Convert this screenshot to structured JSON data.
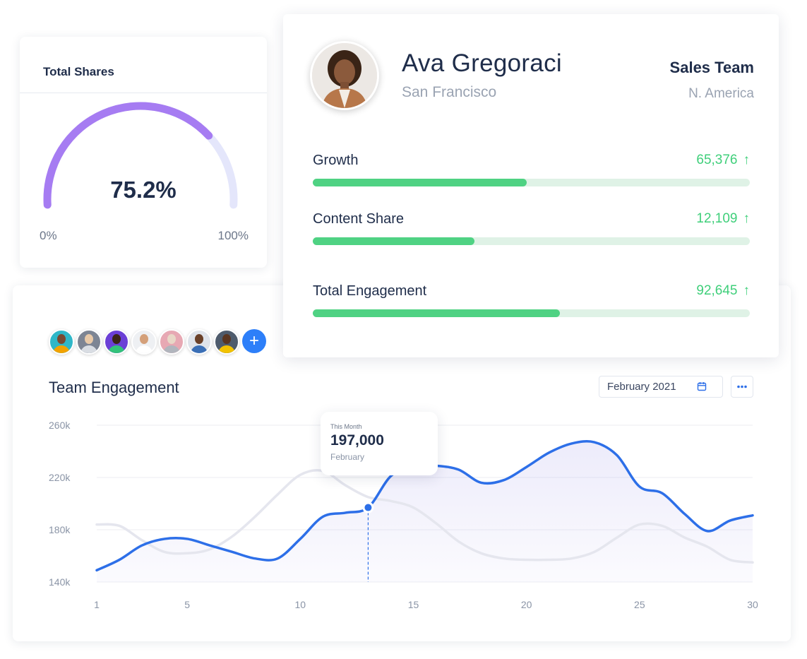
{
  "shares": {
    "title": "Total Shares",
    "percent": 75.2,
    "value_label": "75.2%",
    "min_label": "0%",
    "max_label": "100%"
  },
  "profile": {
    "name": "Ava Gregoraci",
    "city": "San Francisco",
    "team": "Sales Team",
    "region": "N. America",
    "metrics": [
      {
        "label": "Growth",
        "value": "65,376",
        "fill": 0.49
      },
      {
        "label": "Content Share",
        "value": "12,109",
        "fill": 0.37
      },
      {
        "label": "Total Engagement",
        "value": "92,645",
        "fill": 0.565
      }
    ]
  },
  "engagement": {
    "title": "Team Engagement",
    "date_label": "February  2021",
    "tooltip": {
      "caption": "This Month",
      "value": "197,000",
      "month": "February"
    }
  },
  "colors": {
    "accent_blue": "#2d6fe8",
    "secondary_line": "#e5e6ee",
    "gauge_purple": "#a67cf2",
    "gauge_track": "#e4e6fb",
    "metric_green": "#4fd283",
    "add_button": "#2d7ff9"
  },
  "chart_data": {
    "type": "line",
    "x": [
      1,
      2,
      3,
      4,
      5,
      6,
      7,
      8,
      9,
      10,
      11,
      12,
      13,
      14,
      15,
      16,
      17,
      18,
      19,
      20,
      21,
      22,
      23,
      24,
      25,
      26,
      27,
      28,
      29,
      30
    ],
    "x_ticks": [
      1,
      5,
      10,
      15,
      20,
      25,
      30
    ],
    "y_ticks": [
      "140k",
      "180k",
      "220k",
      "260k"
    ],
    "ylim": [
      140000,
      260000
    ],
    "grid": true,
    "highlight": {
      "x": 13,
      "y": 197000
    },
    "series": [
      {
        "values": [
          149000,
          157000,
          168000,
          173000,
          173000,
          168000,
          163000,
          158000,
          158000,
          173000,
          190000,
          193000,
          197000,
          221000,
          229000,
          229000,
          226000,
          216000,
          218000,
          228000,
          239000,
          246000,
          247000,
          237000,
          213000,
          208000,
          192000,
          179000,
          187000,
          191000
        ]
      },
      {
        "values": [
          184000,
          183000,
          172000,
          163000,
          162000,
          165000,
          175000,
          190000,
          207000,
          222000,
          225000,
          214000,
          205000,
          202000,
          197000,
          185000,
          171000,
          162000,
          158000,
          157000,
          157000,
          158000,
          163000,
          174000,
          184000,
          183000,
          174000,
          167000,
          157000,
          155000
        ]
      }
    ]
  }
}
